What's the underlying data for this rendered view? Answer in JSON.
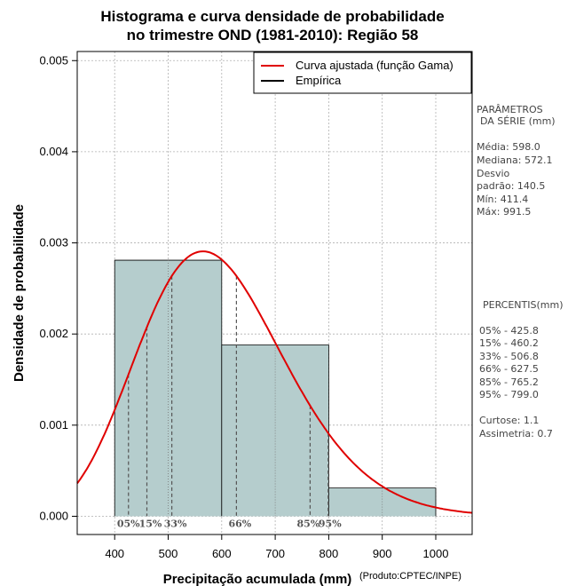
{
  "chart_data": {
    "type": "bar",
    "title_lines": [
      "Histograma e curva densidade de probabilidade",
      "no trimestre OND (1981-2010): Região 58"
    ],
    "xlabel": "Precipitação acumulada (mm)",
    "ylabel": "Densidade de probabilidade",
    "credit": "(Produto:CPTEC/INPE)",
    "xlim": [
      330,
      1068
    ],
    "ylim": [
      -0.0002,
      0.0051
    ],
    "xticks": [
      400,
      500,
      600,
      700,
      800,
      900,
      1000
    ],
    "yticks": [
      0.0,
      0.001,
      0.002,
      0.003,
      0.004,
      0.005
    ],
    "ytick_labels": [
      "0.000",
      "0.001",
      "0.002",
      "0.003",
      "0.004",
      "0.005"
    ],
    "grid": true,
    "bins": [
      {
        "from": 400,
        "to": 600,
        "density": 0.00281
      },
      {
        "from": 600,
        "to": 800,
        "density": 0.00188
      },
      {
        "from": 800,
        "to": 1000,
        "density": 0.00031
      }
    ],
    "bar_color": "#b5cdcd",
    "curve_color": "#e00000",
    "gamma_fit": {
      "mean": 598.0,
      "sd": 140.5
    },
    "percentiles": [
      {
        "label": "05%",
        "value": 425.8
      },
      {
        "label": "15%",
        "value": 460.2
      },
      {
        "label": "33%",
        "value": 506.8
      },
      {
        "label": "66%",
        "value": 627.5
      },
      {
        "label": "85%",
        "value": 765.2
      },
      {
        "label": "95%",
        "value": 799.0
      }
    ],
    "legend": {
      "position": "top-right",
      "entries": [
        {
          "label": "Curva ajustada (função Gama)",
          "color": "#e00000"
        },
        {
          "label": "Empírica",
          "color": "#000000"
        }
      ]
    }
  },
  "side_panel": {
    "params_header": [
      "PARÂMETROS",
      "DA SÉRIE (mm)"
    ],
    "params": [
      "Média:  598.0",
      "Mediana:  572.1",
      "Desvio",
      "padrão:  140.5",
      "Mín:  411.4",
      "Máx:  991.5"
    ],
    "percentis_header": "PERCENTIS(mm)",
    "percentis": [
      "05% -  425.8",
      "15% -  460.2",
      "33% -  506.8",
      "66% -  627.5",
      "85% -  765.2",
      "95% -  799.0"
    ],
    "shape": [
      "Curtose:  1.1",
      "Assimetria:  0.7"
    ]
  }
}
